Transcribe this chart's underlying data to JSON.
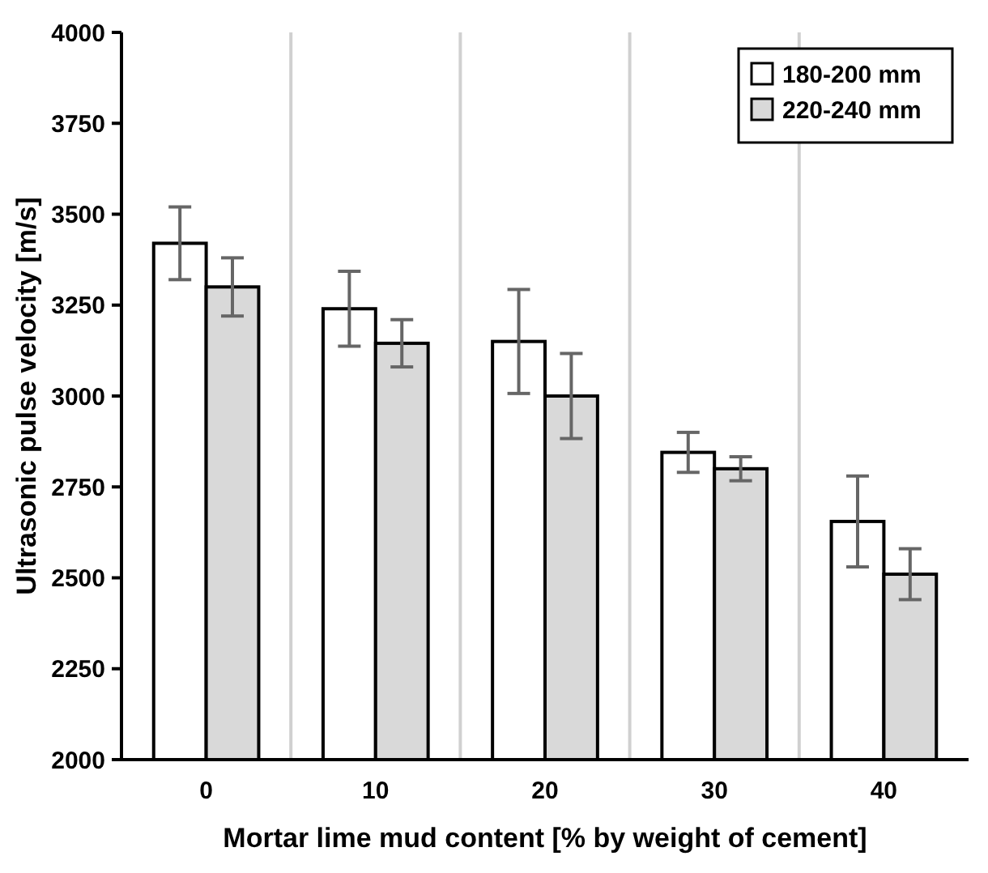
{
  "chart_data": {
    "type": "bar",
    "xlabel": "Mortar lime mud content [% by weight of cement]",
    "ylabel": "Ultrasonic pulse velocity [m/s]",
    "categories": [
      "0",
      "10",
      "20",
      "30",
      "40"
    ],
    "series": [
      {
        "name": "180-200 mm",
        "color": "#ffffff",
        "values": [
          3420,
          3240,
          3150,
          2845,
          2655
        ],
        "errors": [
          100,
          103,
          143,
          55,
          125
        ]
      },
      {
        "name": "220-240 mm",
        "color": "#d9d9d9",
        "values": [
          3300,
          3145,
          3000,
          2800,
          2510
        ],
        "errors": [
          80,
          65,
          117,
          33,
          70
        ]
      }
    ],
    "ylim": [
      2000,
      4000
    ],
    "yticks": [
      2000,
      2250,
      2500,
      2750,
      3000,
      3250,
      3500,
      3750,
      4000
    ],
    "grid": "x",
    "legend": "top right"
  }
}
